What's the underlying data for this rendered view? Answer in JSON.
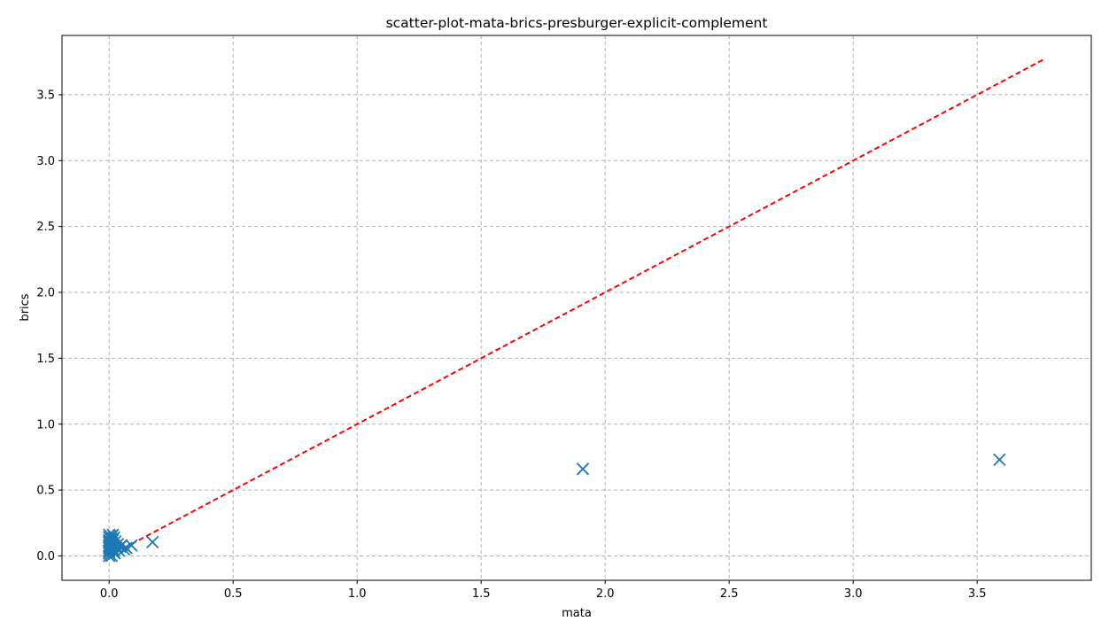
{
  "chart_data": {
    "type": "scatter",
    "title": "scatter-plot-mata-brics-presburger-explicit-complement",
    "xlabel": "mata",
    "ylabel": "brics",
    "xlim": [
      -0.19,
      3.96
    ],
    "ylim": [
      -0.185,
      3.95
    ],
    "xticks": [
      0.0,
      0.5,
      1.0,
      1.5,
      2.0,
      2.5,
      3.0,
      3.5
    ],
    "yticks": [
      0.0,
      0.5,
      1.0,
      1.5,
      2.0,
      2.5,
      3.0,
      3.5
    ],
    "grid": true,
    "marker": "x",
    "marker_color": "#1f77b4",
    "reference_line": {
      "style": "dashed",
      "color": "#ff0000",
      "x": [
        0.0,
        3.77
      ],
      "y": [
        0.0,
        3.77
      ]
    },
    "series": [
      {
        "x": [
          0.0,
          0.0,
          0.0,
          0.0,
          0.0,
          0.0,
          0.0,
          0.0,
          0.0,
          0.0,
          0.0,
          0.0,
          0.003,
          0.005,
          0.005,
          0.008,
          0.01,
          0.01,
          0.012,
          0.015,
          0.015,
          0.018,
          0.02,
          0.02,
          0.022,
          0.025,
          0.03,
          0.035,
          0.04,
          0.045,
          0.05,
          0.06,
          0.07,
          0.09,
          0.175,
          1.91,
          3.59
        ],
        "y": [
          0.0,
          0.02,
          0.04,
          0.06,
          0.08,
          0.1,
          0.12,
          0.14,
          0.16,
          0.03,
          0.07,
          0.11,
          0.05,
          0.15,
          0.09,
          0.13,
          0.0,
          0.1,
          0.06,
          0.16,
          0.12,
          0.04,
          0.08,
          0.14,
          0.02,
          0.11,
          0.06,
          0.09,
          0.04,
          0.07,
          0.08,
          0.05,
          0.06,
          0.08,
          0.105,
          0.66,
          0.73
        ]
      }
    ]
  }
}
